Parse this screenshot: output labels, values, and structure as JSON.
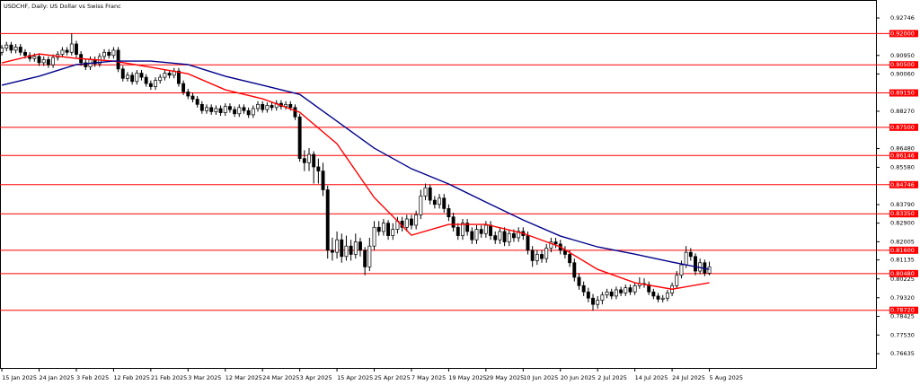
{
  "chart_data": {
    "type": "candlestick",
    "title": "USDCHF, Daily:  US Dollar vs Swiss Franc",
    "xlim": [
      -0.4,
      187.8
    ],
    "ylim": [
      0.7595,
      0.9361
    ],
    "yticks": [
      0.92746,
      {
        "value": 0.9095,
        "label": "0.90950"
      },
      {
        "value": 0.9006,
        "label": "0.90060"
      },
      {
        "value": 0.8827,
        "label": "0.88270"
      },
      {
        "value": 0.8648,
        "label": "0.86480"
      },
      {
        "value": 0.8558,
        "label": "0.85580"
      },
      {
        "value": 0.8379,
        "label": "0.83790"
      },
      {
        "value": 0.829,
        "label": "0.82900"
      },
      0.82005,
      0.81135,
      0.80225,
      {
        "value": 0.7932,
        "label": "0.79320"
      },
      0.78425,
      {
        "value": 0.7753,
        "label": "0.77530"
      },
      0.76635
    ],
    "xticks": [
      {
        "value": 0,
        "label": "15 Jan 2025"
      },
      {
        "value": 8,
        "label": "24 Jan 2025"
      },
      {
        "value": 16,
        "label": "3 Feb 2025"
      },
      {
        "value": 24,
        "label": "12 Feb 2025"
      },
      {
        "value": 32,
        "label": "21 Feb 2025"
      },
      {
        "value": 40,
        "label": "3 Mar 2025"
      },
      {
        "value": 48,
        "label": "12 Mar 2025"
      },
      {
        "value": 56,
        "label": "24 Mar 2025"
      },
      {
        "value": 64,
        "label": "3 Apr 2025"
      },
      {
        "value": 72,
        "label": "15 Apr 2025"
      },
      {
        "value": 80,
        "label": "25 Apr 2025"
      },
      {
        "value": 88,
        "label": "7 May 2025"
      },
      {
        "value": 96,
        "label": "19 May 2025"
      },
      {
        "value": 104,
        "label": "29 May 2025"
      },
      {
        "value": 112,
        "label": "10 Jun 2025"
      },
      {
        "value": 120,
        "label": "20 Jun 2025"
      },
      {
        "value": 128,
        "label": "2 Jul 2025"
      },
      {
        "value": 136,
        "label": "14 Jul 2025"
      },
      {
        "value": 144,
        "label": "24 Jul 2025"
      },
      {
        "value": 152,
        "label": "5 Aug 2025"
      }
    ],
    "levels_color": "#ff0000",
    "levels": [
      {
        "value": 0.92,
        "label": "0.92000"
      },
      {
        "value": 0.905,
        "label": "0.90500"
      },
      {
        "value": 0.8915,
        "label": "0.89150"
      },
      {
        "value": 0.875,
        "label": "0.87500"
      },
      {
        "value": 0.86146,
        "label": "0.86146"
      },
      {
        "value": 0.84746,
        "label": "0.84746"
      },
      {
        "value": 0.8335,
        "label": "0.83350"
      },
      {
        "value": 0.816,
        "label": "0.81600"
      },
      {
        "value": 0.8048,
        "label": "0.80480"
      },
      {
        "value": 0.7872,
        "label": "0.78720"
      }
    ],
    "candles": [
      [
        0.911,
        0.9145,
        0.9095,
        0.913
      ],
      [
        0.913,
        0.916,
        0.9115,
        0.9145
      ],
      [
        0.9145,
        0.916,
        0.9105,
        0.912
      ],
      [
        0.912,
        0.915,
        0.9105,
        0.9135
      ],
      [
        0.9135,
        0.915,
        0.9095,
        0.911
      ],
      [
        0.911,
        0.9125,
        0.908,
        0.9095
      ],
      [
        0.9095,
        0.911,
        0.9065,
        0.908
      ],
      [
        0.908,
        0.9105,
        0.9065,
        0.909
      ],
      [
        0.909,
        0.9105,
        0.9045,
        0.906
      ],
      [
        0.906,
        0.909,
        0.9045,
        0.9075
      ],
      [
        0.9075,
        0.909,
        0.9035,
        0.905
      ],
      [
        0.905,
        0.91,
        0.9035,
        0.9085
      ],
      [
        0.9085,
        0.9115,
        0.907,
        0.91
      ],
      [
        0.91,
        0.9135,
        0.9085,
        0.912
      ],
      [
        0.912,
        0.9135,
        0.9095,
        0.911
      ],
      [
        0.911,
        0.92,
        0.9095,
        0.915
      ],
      [
        0.915,
        0.9165,
        0.9085,
        0.91
      ],
      [
        0.91,
        0.9115,
        0.9045,
        0.906
      ],
      [
        0.906,
        0.9075,
        0.9025,
        0.904
      ],
      [
        0.904,
        0.909,
        0.9025,
        0.9075
      ],
      [
        0.9075,
        0.909,
        0.904,
        0.9055
      ],
      [
        0.9055,
        0.9105,
        0.904,
        0.909
      ],
      [
        0.909,
        0.9125,
        0.9075,
        0.911
      ],
      [
        0.911,
        0.9125,
        0.908,
        0.9095
      ],
      [
        0.9095,
        0.9135,
        0.908,
        0.912
      ],
      [
        0.912,
        0.9135,
        0.9015,
        0.903
      ],
      [
        0.903,
        0.9045,
        0.897,
        0.8985
      ],
      [
        0.8985,
        0.9015,
        0.897,
        0.9
      ],
      [
        0.9,
        0.9015,
        0.8955,
        0.897
      ],
      [
        0.897,
        0.9025,
        0.8955,
        0.901
      ],
      [
        0.901,
        0.9025,
        0.8975,
        0.899
      ],
      [
        0.899,
        0.9005,
        0.8945,
        0.896
      ],
      [
        0.896,
        0.8975,
        0.893,
        0.8945
      ],
      [
        0.8945,
        0.899,
        0.893,
        0.8975
      ],
      [
        0.8975,
        0.9005,
        0.896,
        0.899
      ],
      [
        0.899,
        0.9025,
        0.8975,
        0.901
      ],
      [
        0.901,
        0.9025,
        0.8985,
        0.9
      ],
      [
        0.9,
        0.9035,
        0.8985,
        0.902
      ],
      [
        0.902,
        0.9035,
        0.8945,
        0.896
      ],
      [
        0.896,
        0.8975,
        0.8905,
        0.892
      ],
      [
        0.892,
        0.8935,
        0.8885,
        0.89
      ],
      [
        0.89,
        0.8915,
        0.887,
        0.8885
      ],
      [
        0.8885,
        0.89,
        0.8845,
        0.886
      ],
      [
        0.886,
        0.8875,
        0.8815,
        0.883
      ],
      [
        0.883,
        0.886,
        0.8815,
        0.8845
      ],
      [
        0.8845,
        0.886,
        0.881,
        0.8825
      ],
      [
        0.8825,
        0.8855,
        0.881,
        0.884
      ],
      [
        0.884,
        0.8855,
        0.8805,
        0.882
      ],
      [
        0.882,
        0.8865,
        0.8805,
        0.885
      ],
      [
        0.885,
        0.8865,
        0.882,
        0.8835
      ],
      [
        0.8835,
        0.885,
        0.88,
        0.8815
      ],
      [
        0.8815,
        0.886,
        0.88,
        0.8845
      ],
      [
        0.8845,
        0.886,
        0.8815,
        0.883
      ],
      [
        0.883,
        0.8845,
        0.8795,
        0.881
      ],
      [
        0.881,
        0.8855,
        0.8795,
        0.884
      ],
      [
        0.884,
        0.8875,
        0.8825,
        0.886
      ],
      [
        0.886,
        0.8875,
        0.882,
        0.8835
      ],
      [
        0.8835,
        0.887,
        0.882,
        0.8855
      ],
      [
        0.8855,
        0.887,
        0.883,
        0.8845
      ],
      [
        0.8845,
        0.888,
        0.883,
        0.8865
      ],
      [
        0.8865,
        0.888,
        0.8835,
        0.885
      ],
      [
        0.885,
        0.8875,
        0.8835,
        0.886
      ],
      [
        0.886,
        0.8875,
        0.883,
        0.8845
      ],
      [
        0.8845,
        0.886,
        0.8785,
        0.88
      ],
      [
        0.88,
        0.8815,
        0.8585,
        0.86
      ],
      [
        0.86,
        0.864,
        0.854,
        0.858
      ],
      [
        0.858,
        0.865,
        0.854,
        0.862
      ],
      [
        0.862,
        0.8635,
        0.848,
        0.856
      ],
      [
        0.856,
        0.86,
        0.848,
        0.854
      ],
      [
        0.854,
        0.858,
        0.842,
        0.845
      ],
      [
        0.845,
        0.847,
        0.812,
        0.816
      ],
      [
        0.816,
        0.822,
        0.811,
        0.815
      ],
      [
        0.815,
        0.825,
        0.812,
        0.821
      ],
      [
        0.821,
        0.824,
        0.81,
        0.813
      ],
      [
        0.813,
        0.823,
        0.811,
        0.818
      ],
      [
        0.818,
        0.821,
        0.811,
        0.814
      ],
      [
        0.814,
        0.824,
        0.812,
        0.82
      ],
      [
        0.82,
        0.822,
        0.813,
        0.816
      ],
      [
        0.816,
        0.8175,
        0.804,
        0.808
      ],
      [
        0.808,
        0.822,
        0.806,
        0.818
      ],
      [
        0.818,
        0.83,
        0.816,
        0.827
      ],
      [
        0.827,
        0.83,
        0.823,
        0.825
      ],
      [
        0.825,
        0.831,
        0.823,
        0.829
      ],
      [
        0.829,
        0.8305,
        0.821,
        0.823
      ],
      [
        0.823,
        0.829,
        0.821,
        0.826
      ],
      [
        0.826,
        0.832,
        0.824,
        0.83
      ],
      [
        0.83,
        0.832,
        0.825,
        0.827
      ],
      [
        0.827,
        0.833,
        0.825,
        0.831
      ],
      [
        0.831,
        0.833,
        0.826,
        0.828
      ],
      [
        0.828,
        0.835,
        0.826,
        0.833
      ],
      [
        0.833,
        0.845,
        0.831,
        0.842
      ],
      [
        0.842,
        0.848,
        0.84,
        0.846
      ],
      [
        0.846,
        0.8475,
        0.838,
        0.84
      ],
      [
        0.84,
        0.842,
        0.836,
        0.838
      ],
      [
        0.838,
        0.843,
        0.836,
        0.841
      ],
      [
        0.841,
        0.843,
        0.834,
        0.836
      ],
      [
        0.836,
        0.838,
        0.83,
        0.832
      ],
      [
        0.832,
        0.834,
        0.825,
        0.827
      ],
      [
        0.827,
        0.829,
        0.821,
        0.823
      ],
      [
        0.823,
        0.831,
        0.821,
        0.829
      ],
      [
        0.829,
        0.831,
        0.823,
        0.825
      ],
      [
        0.825,
        0.827,
        0.819,
        0.821
      ],
      [
        0.821,
        0.828,
        0.819,
        0.826
      ],
      [
        0.826,
        0.828,
        0.822,
        0.824
      ],
      [
        0.824,
        0.83,
        0.822,
        0.828
      ],
      [
        0.828,
        0.83,
        0.821,
        0.823
      ],
      [
        0.823,
        0.825,
        0.819,
        0.821
      ],
      [
        0.821,
        0.827,
        0.819,
        0.825
      ],
      [
        0.825,
        0.827,
        0.818,
        0.82
      ],
      [
        0.82,
        0.826,
        0.818,
        0.824
      ],
      [
        0.824,
        0.826,
        0.82,
        0.822
      ],
      [
        0.822,
        0.827,
        0.82,
        0.825
      ],
      [
        0.825,
        0.827,
        0.821,
        0.823
      ],
      [
        0.823,
        0.825,
        0.814,
        0.816
      ],
      [
        0.816,
        0.818,
        0.808,
        0.811
      ],
      [
        0.811,
        0.816,
        0.809,
        0.814
      ],
      [
        0.814,
        0.816,
        0.81,
        0.812
      ],
      [
        0.812,
        0.819,
        0.81,
        0.817
      ],
      [
        0.817,
        0.822,
        0.815,
        0.82
      ],
      [
        0.82,
        0.822,
        0.817,
        0.819
      ],
      [
        0.819,
        0.821,
        0.814,
        0.816
      ],
      [
        0.816,
        0.818,
        0.812,
        0.814
      ],
      [
        0.814,
        0.816,
        0.808,
        0.81
      ],
      [
        0.81,
        0.812,
        0.801,
        0.803
      ],
      [
        0.803,
        0.805,
        0.797,
        0.799
      ],
      [
        0.799,
        0.801,
        0.794,
        0.796
      ],
      [
        0.796,
        0.798,
        0.791,
        0.793
      ],
      [
        0.793,
        0.795,
        0.787,
        0.79
      ],
      [
        0.79,
        0.794,
        0.788,
        0.792
      ],
      [
        0.792,
        0.796,
        0.79,
        0.7945
      ],
      [
        0.7945,
        0.7975,
        0.793,
        0.796
      ],
      [
        0.796,
        0.7975,
        0.7925,
        0.794
      ],
      [
        0.794,
        0.7985,
        0.7925,
        0.797
      ],
      [
        0.797,
        0.7985,
        0.794,
        0.7955
      ],
      [
        0.7955,
        0.7995,
        0.794,
        0.798
      ],
      [
        0.798,
        0.7995,
        0.7945,
        0.796
      ],
      [
        0.796,
        0.8005,
        0.7945,
        0.799
      ],
      [
        0.799,
        0.803,
        0.7975,
        0.8
      ],
      [
        0.8,
        0.8025,
        0.798,
        0.7995
      ],
      [
        0.7995,
        0.801,
        0.7945,
        0.796
      ],
      [
        0.796,
        0.7975,
        0.7925,
        0.794
      ],
      [
        0.794,
        0.7955,
        0.791,
        0.7925
      ],
      [
        0.7925,
        0.7945,
        0.791,
        0.793
      ],
      [
        0.793,
        0.797,
        0.7915,
        0.7955
      ],
      [
        0.7955,
        0.8005,
        0.794,
        0.799
      ],
      [
        0.799,
        0.806,
        0.7975,
        0.804
      ],
      [
        0.804,
        0.811,
        0.8025,
        0.809
      ],
      [
        0.809,
        0.818,
        0.8075,
        0.815
      ],
      [
        0.815,
        0.817,
        0.811,
        0.813
      ],
      [
        0.813,
        0.8145,
        0.804,
        0.806
      ],
      [
        0.806,
        0.812,
        0.8045,
        0.81
      ],
      [
        0.81,
        0.8115,
        0.8035,
        0.805
      ],
      [
        0.805,
        0.8105,
        0.804,
        0.808
      ]
    ],
    "series": [
      {
        "color": "#ff0000",
        "x": [
          0,
          8,
          16,
          24,
          32,
          40,
          48,
          56,
          64,
          72,
          80,
          88,
          96,
          104,
          112,
          120,
          128,
          136,
          144,
          152
        ],
        "values": [
          0.9059,
          0.9102,
          0.9081,
          0.9068,
          0.9038,
          0.9007,
          0.893,
          0.8887,
          0.8822,
          0.8671,
          0.8413,
          0.8232,
          0.8284,
          0.8284,
          0.8241,
          0.8176,
          0.8068,
          0.8004,
          0.7973,
          0.8004
        ]
      },
      {
        "color": "#00008b",
        "x": [
          0,
          8,
          16,
          24,
          32,
          40,
          48,
          56,
          64,
          72,
          80,
          88,
          96,
          104,
          112,
          120,
          128,
          136,
          144,
          152
        ],
        "values": [
          0.8952,
          0.8995,
          0.9051,
          0.9068,
          0.9068,
          0.9051,
          0.8995,
          0.8952,
          0.8908,
          0.8779,
          0.865,
          0.8551,
          0.8478,
          0.8391,
          0.8305,
          0.8228,
          0.8176,
          0.8141,
          0.8103,
          0.8068
        ]
      }
    ]
  }
}
